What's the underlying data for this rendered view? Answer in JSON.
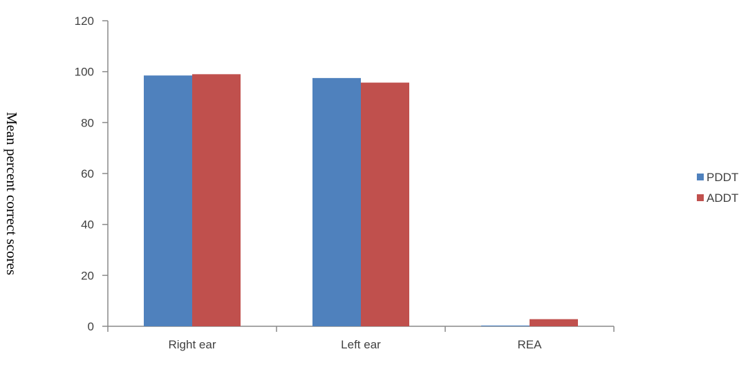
{
  "chart_data": {
    "type": "bar",
    "categories": [
      "Right ear",
      "Left ear",
      "REA"
    ],
    "series": [
      {
        "name": "PDDT",
        "values": [
          98.5,
          97.5,
          0.3
        ],
        "color": "#4F81BD"
      },
      {
        "name": "ADDT",
        "values": [
          99,
          95.7,
          2.8
        ],
        "color": "#C0504D"
      }
    ],
    "title": "",
    "xlabel": "",
    "ylabel": "Mean percent correct scores",
    "ylim": [
      0,
      120
    ],
    "yticks": [
      "0",
      "20",
      "40",
      "60",
      "80",
      "100",
      "120"
    ],
    "grid": false,
    "legend_position": "right"
  }
}
